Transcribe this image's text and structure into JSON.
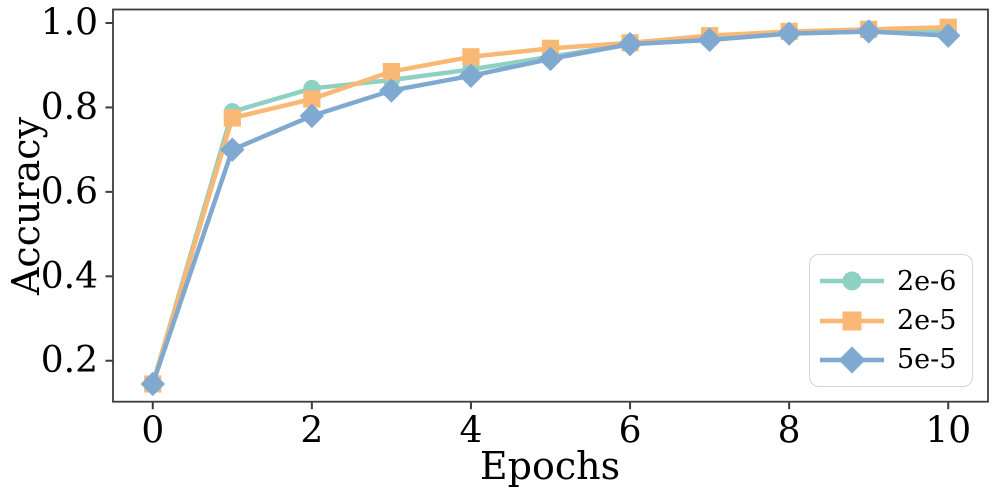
{
  "chart_data": {
    "type": "line",
    "title": "",
    "xlabel": "Epochs",
    "ylabel": "Accuracy",
    "x": [
      0,
      1,
      2,
      3,
      4,
      5,
      6,
      7,
      8,
      9,
      10
    ],
    "xlim": [
      -0.5,
      10.5
    ],
    "ylim": [
      0.103,
      1.032
    ],
    "xticks": [
      0,
      2,
      4,
      6,
      8,
      10
    ],
    "yticks": [
      0.2,
      0.4,
      0.6,
      0.8,
      1.0
    ],
    "grid": false,
    "legend_position": "lower right",
    "axis_color": "#3d3d3d",
    "text_color": "#000000",
    "series": [
      {
        "name": "2e-6",
        "color": "#8ed1c2",
        "marker": "circle",
        "values": [
          0.145,
          0.79,
          0.845,
          0.865,
          0.89,
          0.92,
          0.95,
          0.96,
          0.975,
          0.98,
          0.98
        ]
      },
      {
        "name": "2e-5",
        "color": "#fab875",
        "marker": "square",
        "values": [
          0.145,
          0.775,
          0.82,
          0.885,
          0.92,
          0.94,
          0.953,
          0.97,
          0.98,
          0.985,
          0.99
        ]
      },
      {
        "name": "5e-5",
        "color": "#7fa9d1",
        "marker": "diamond",
        "values": [
          0.145,
          0.7,
          0.78,
          0.84,
          0.875,
          0.915,
          0.95,
          0.96,
          0.975,
          0.98,
          0.97
        ]
      }
    ]
  }
}
